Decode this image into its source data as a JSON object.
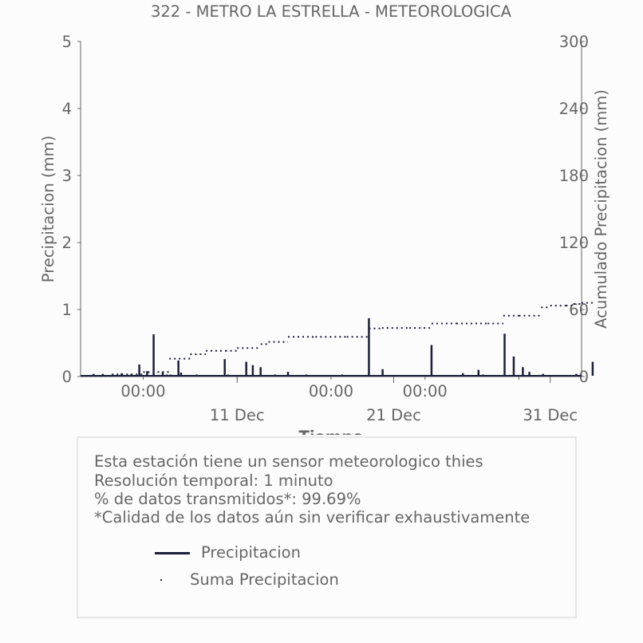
{
  "chart_data": {
    "type": "line",
    "title": "322 - METRO LA ESTRELLA - METEOROLOGICA",
    "xlabel": "Tiempo",
    "ylabel_left": "Precipitacion (mm)",
    "ylabel_right": "Acumulado Precipitacion (mm)",
    "ylim_left": [
      0,
      5
    ],
    "ylim_right": [
      0,
      300
    ],
    "yticks_left": [
      "0",
      "1",
      "2",
      "3",
      "4",
      "5"
    ],
    "yticks_right": [
      "0",
      "60",
      "120",
      "180",
      "240",
      "300"
    ],
    "xlim": [
      "2023-12-01T00:00",
      "2024-01-02T00:00"
    ],
    "xticks_minor": [
      {
        "x": "2023-12-05T00:00",
        "label": "00:00"
      },
      {
        "x": "2023-12-11T00:00",
        "label": ""
      },
      {
        "x": "2023-12-17T00:00",
        "label": "00:00"
      },
      {
        "x": "2023-12-23T00:00",
        "label": "00:00"
      },
      {
        "x": "2023-12-29T00:00",
        "label": ""
      },
      {
        "x": "2024-01-04T00:00",
        "label": "00:00"
      },
      {
        "x": "2024-01-10T00:00",
        "label": "00:00"
      }
    ],
    "xticks_major": [
      {
        "x": "2023-12-11T00:00",
        "label": "11 Dec"
      },
      {
        "x": "2023-12-21T00:00",
        "label": "21 Dec"
      },
      {
        "x": "2023-12-31T00:00",
        "label": "31 Dec"
      }
    ],
    "grid": false,
    "series": [
      {
        "name": "Precipitacion",
        "axis": "left",
        "style": "solid",
        "color": "#1c1f3a",
        "x": [
          "2023-12-01T20:00",
          "2023-12-02T10:00",
          "2023-12-03T15:00",
          "2023-12-04T06:00",
          "2023-12-04T18:00",
          "2023-12-05T06:00",
          "2023-12-05T16:00",
          "2023-12-06T06:00",
          "2023-12-06T12:00",
          "2023-12-06T18:00",
          "2023-12-07T06:00",
          "2023-12-07T10:00",
          "2023-12-08T10:00",
          "2023-12-10T05:00",
          "2023-12-10T10:00",
          "2023-12-11T14:00",
          "2023-12-12T00:00",
          "2023-12-12T12:00",
          "2023-12-13T10:00",
          "2023-12-14T06:00",
          "2023-12-15T10:00",
          "2023-12-17T17:00",
          "2023-12-19T10:00",
          "2023-12-20T07:00",
          "2023-12-23T10:00",
          "2023-12-25T10:00",
          "2023-12-26T10:00",
          "2023-12-26T17:00",
          "2023-12-28T02:00",
          "2023-12-28T16:00",
          "2023-12-29T06:00",
          "2023-12-29T16:00",
          "2023-12-30T13:00",
          "2024-01-01T16:00",
          "2024-01-02T17:00"
        ],
        "values": [
          0.04,
          0.04,
          0.05,
          0.04,
          0.18,
          0.08,
          0.63,
          0.07,
          0.03,
          0.03,
          0.24,
          0.06,
          0.03,
          0.26,
          0.03,
          0.22,
          0.17,
          0.14,
          0.03,
          0.07,
          0.03,
          0.03,
          0.87,
          0.11,
          0.47,
          0.05,
          0.1,
          0.03,
          0.64,
          0.3,
          0.14,
          0.07,
          0.04,
          0.04,
          0.22
        ]
      },
      {
        "name": "Suma Precipitacion",
        "axis": "right",
        "style": "dotted",
        "color": "#1c1f3a",
        "x": [
          "2023-12-01T00:00",
          "2023-12-03T00:00",
          "2023-12-05T00:00",
          "2023-12-06T16:00",
          "2023-12-08T00:00",
          "2023-12-09T00:00",
          "2023-12-10T06:00",
          "2023-12-11T00:00",
          "2023-12-12T12:00",
          "2023-12-13T00:00",
          "2023-12-14T06:00",
          "2023-12-16T00:00",
          "2023-12-18T00:00",
          "2023-12-19T10:00",
          "2023-12-20T06:00",
          "2023-12-22T00:00",
          "2023-12-23T10:00",
          "2023-12-25T00:00",
          "2023-12-27T00:00",
          "2023-12-28T00:00",
          "2023-12-29T00:00",
          "2023-12-30T10:00",
          "2023-12-31T00:00",
          "2024-01-01T00:00",
          "2024-01-01T12:00",
          "2024-01-02T17:00"
        ],
        "values": [
          0.5,
          2,
          4,
          16,
          20,
          23,
          23,
          25.5,
          29,
          31,
          35.5,
          35.5,
          35.5,
          43,
          43.5,
          43.5,
          47.5,
          47.5,
          47.5,
          54.5,
          54.5,
          62,
          63.5,
          63.5,
          65,
          66
        ]
      }
    ],
    "legend": {
      "placement": "below"
    }
  },
  "info": {
    "line1": "Esta estación tiene un sensor meteorologico thies",
    "line2": "Resolución temporal: 1 minuto",
    "line3": "% de datos transmitidos*: 99.69%",
    "line4": "*Calidad de los datos aún sin verificar exhaustivamente"
  },
  "legend": {
    "item1": "Precipitacion",
    "item2": "Suma Precipitacion"
  },
  "colors": {
    "series": "#1c1f3a",
    "text": "#666666",
    "axis": "#666666",
    "box_border": "#e6e6e6",
    "background": "#fcfcfc"
  }
}
